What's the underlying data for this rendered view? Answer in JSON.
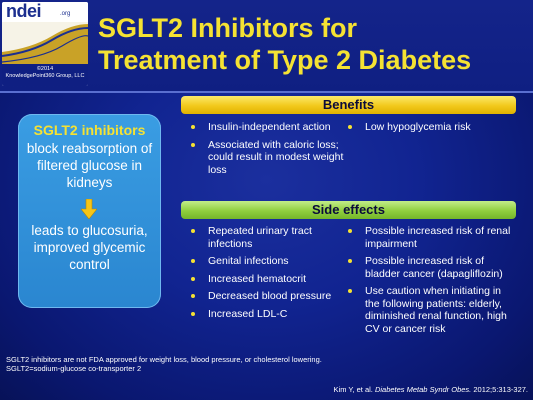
{
  "logo": {
    "word": "ndei",
    "suffix": ".org",
    "copyright_line1": "©2014",
    "copyright_line2": "KnowledgePoint360 Group, LLC"
  },
  "title": {
    "line1": "SGLT2 Inhibitors for",
    "line2": "Treatment of Type 2 Diabetes"
  },
  "left_box": {
    "heading": "SGLT2 inhibitors",
    "text1": "block reabsorption of filtered glucose in kidneys",
    "text2": "leads to glucosuria, improved glycemic control"
  },
  "benefits": {
    "header": "Benefits",
    "left_items": [
      "Insulin-independent action",
      "Associated with caloric loss; could result in modest weight loss"
    ],
    "right_items": [
      "Low hypoglycemia risk"
    ]
  },
  "side_effects": {
    "header": "Side effects",
    "left_items": [
      "Repeated urinary tract infections",
      "Genital infections",
      "Increased hematocrit",
      "Decreased blood pressure",
      "Increased LDL-C"
    ],
    "right_items": [
      "Possible increased risk of renal impairment",
      "Possible increased risk of bladder cancer (dapagliflozin)",
      "Use caution when initiating in the following patients: elderly, diminished renal function, high CV or cancer risk"
    ]
  },
  "footnote": {
    "line1": "SGLT2 inhibitors are not FDA approved for weight loss, blood pressure, or cholesterol lowering.",
    "line2": "SGLT2=sodium-glucose co-transporter 2"
  },
  "citation": {
    "author": "Kim Y, et al.",
    "journal": "Diabetes Metab Syndr Obes.",
    "ref": "2012;5:313-327."
  },
  "colors": {
    "background": "#0b1a6e",
    "title": "#f5e233",
    "benefits_bar": "#f2c81b",
    "side_effects_bar": "#90cf3e",
    "left_box": "#2a86d0",
    "arrow": "#f5c518"
  }
}
